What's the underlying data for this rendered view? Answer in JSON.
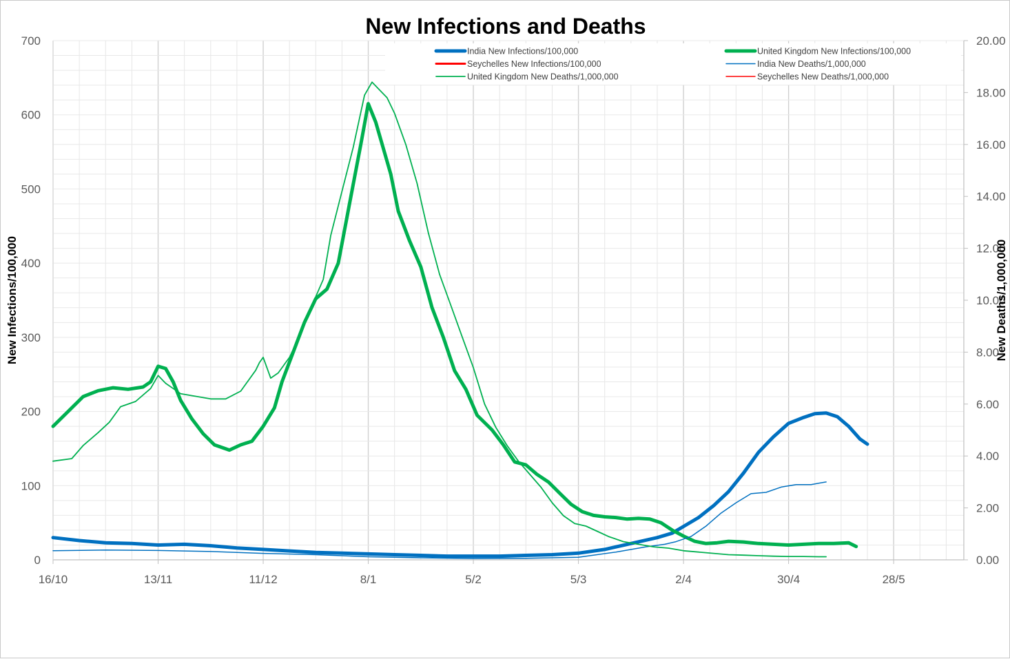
{
  "chart_data": {
    "type": "line",
    "title": "New Infections and Deaths",
    "ylabel": "New Infections/100,000",
    "y2label": "New Deaths/1,000,000",
    "ylim": [
      0,
      700
    ],
    "y2lim": [
      0,
      20
    ],
    "yticks": [
      "0",
      "100",
      "200",
      "300",
      "400",
      "500",
      "600",
      "700"
    ],
    "y2ticks": [
      "0.00",
      "2.00",
      "4.00",
      "6.00",
      "8.00",
      "10.00",
      "12.00",
      "14.00",
      "16.00",
      "18.00",
      "20.00"
    ],
    "xlim": [
      0,
      245
    ],
    "xticks": [
      {
        "day": 0,
        "label": "16/10"
      },
      {
        "day": 28,
        "label": "13/11"
      },
      {
        "day": 56,
        "label": "11/12"
      },
      {
        "day": 84,
        "label": "8/1"
      },
      {
        "day": 112,
        "label": "5/2"
      },
      {
        "day": 140,
        "label": "5/3"
      },
      {
        "day": 168,
        "label": "2/4"
      },
      {
        "day": 196,
        "label": "30/4"
      },
      {
        "day": 224,
        "label": "28/5"
      }
    ],
    "grid": true,
    "legend_position": "top-right",
    "series": [
      {
        "name": "India New Infections/100,000",
        "axis": "left",
        "color": "#0070C0",
        "width": 5,
        "points": [
          [
            0,
            30
          ],
          [
            7,
            26
          ],
          [
            14,
            23
          ],
          [
            21,
            22
          ],
          [
            28,
            20
          ],
          [
            35,
            21
          ],
          [
            42,
            19
          ],
          [
            49,
            16
          ],
          [
            56,
            14
          ],
          [
            63,
            12
          ],
          [
            70,
            10
          ],
          [
            77,
            9
          ],
          [
            84,
            8
          ],
          [
            91,
            7
          ],
          [
            98,
            6
          ],
          [
            105,
            5
          ],
          [
            112,
            5
          ],
          [
            119,
            5
          ],
          [
            126,
            6
          ],
          [
            133,
            7
          ],
          [
            140,
            9
          ],
          [
            147,
            14
          ],
          [
            154,
            22
          ],
          [
            161,
            30
          ],
          [
            165,
            36
          ],
          [
            168,
            45
          ],
          [
            172,
            57
          ],
          [
            176,
            73
          ],
          [
            180,
            92
          ],
          [
            184,
            117
          ],
          [
            188,
            145
          ],
          [
            192,
            166
          ],
          [
            196,
            184
          ],
          [
            200,
            192
          ],
          [
            203,
            197
          ],
          [
            206,
            198
          ],
          [
            209,
            193
          ],
          [
            212,
            180
          ],
          [
            215,
            163
          ],
          [
            217,
            156
          ]
        ]
      },
      {
        "name": "United Kingdom New Infections/100,000",
        "axis": "left",
        "color": "#00B050",
        "width": 5,
        "points": [
          [
            0,
            180
          ],
          [
            4,
            200
          ],
          [
            8,
            220
          ],
          [
            12,
            228
          ],
          [
            16,
            232
          ],
          [
            20,
            230
          ],
          [
            24,
            233
          ],
          [
            26,
            240
          ],
          [
            28,
            261
          ],
          [
            30,
            258
          ],
          [
            32,
            240
          ],
          [
            34,
            215
          ],
          [
            37,
            190
          ],
          [
            40,
            170
          ],
          [
            43,
            155
          ],
          [
            47,
            148
          ],
          [
            50,
            155
          ],
          [
            53,
            160
          ],
          [
            56,
            180
          ],
          [
            59,
            205
          ],
          [
            61,
            240
          ],
          [
            64,
            280
          ],
          [
            67,
            320
          ],
          [
            70,
            352
          ],
          [
            73,
            365
          ],
          [
            76,
            400
          ],
          [
            79,
            480
          ],
          [
            82,
            560
          ],
          [
            84,
            615
          ],
          [
            86,
            590
          ],
          [
            88,
            555
          ],
          [
            90,
            520
          ],
          [
            92,
            470
          ],
          [
            95,
            430
          ],
          [
            98,
            395
          ],
          [
            101,
            340
          ],
          [
            104,
            300
          ],
          [
            107,
            255
          ],
          [
            110,
            230
          ],
          [
            113,
            195
          ],
          [
            117,
            175
          ],
          [
            120,
            155
          ],
          [
            123,
            132
          ],
          [
            126,
            128
          ],
          [
            129,
            115
          ],
          [
            132,
            105
          ],
          [
            135,
            90
          ],
          [
            138,
            75
          ],
          [
            141,
            65
          ],
          [
            144,
            60
          ],
          [
            147,
            58
          ],
          [
            150,
            57
          ],
          [
            153,
            55
          ],
          [
            156,
            56
          ],
          [
            159,
            55
          ],
          [
            162,
            50
          ],
          [
            165,
            40
          ],
          [
            168,
            32
          ],
          [
            171,
            25
          ],
          [
            174,
            22
          ],
          [
            177,
            23
          ],
          [
            180,
            25
          ],
          [
            184,
            24
          ],
          [
            188,
            22
          ],
          [
            192,
            21
          ],
          [
            196,
            20
          ],
          [
            200,
            21
          ],
          [
            204,
            22
          ],
          [
            208,
            22
          ],
          [
            212,
            23
          ],
          [
            214,
            18
          ]
        ]
      },
      {
        "name": "India New Deaths/1,000,000",
        "axis": "right",
        "color": "#0070C0",
        "width": 1.5,
        "points": [
          [
            0,
            0.35
          ],
          [
            14,
            0.38
          ],
          [
            28,
            0.36
          ],
          [
            42,
            0.32
          ],
          [
            56,
            0.25
          ],
          [
            70,
            0.2
          ],
          [
            84,
            0.12
          ],
          [
            98,
            0.08
          ],
          [
            112,
            0.05
          ],
          [
            126,
            0.06
          ],
          [
            140,
            0.1
          ],
          [
            150,
            0.3
          ],
          [
            158,
            0.5
          ],
          [
            163,
            0.6
          ],
          [
            166,
            0.7
          ],
          [
            170,
            0.9
          ],
          [
            174,
            1.3
          ],
          [
            178,
            1.8
          ],
          [
            182,
            2.2
          ],
          [
            186,
            2.55
          ],
          [
            190,
            2.6
          ],
          [
            194,
            2.8
          ],
          [
            198,
            2.9
          ],
          [
            202,
            2.9
          ],
          [
            204,
            2.95
          ],
          [
            206,
            3.0
          ]
        ]
      },
      {
        "name": "United Kingdom New Deaths/1,000,000",
        "axis": "right",
        "color": "#00B050",
        "width": 1.8,
        "points": [
          [
            0,
            3.8
          ],
          [
            5,
            3.9
          ],
          [
            8,
            4.4
          ],
          [
            12,
            4.9
          ],
          [
            15,
            5.3
          ],
          [
            18,
            5.9
          ],
          [
            22,
            6.1
          ],
          [
            26,
            6.6
          ],
          [
            28,
            7.1
          ],
          [
            30,
            6.8
          ],
          [
            34,
            6.4
          ],
          [
            38,
            6.3
          ],
          [
            42,
            6.2
          ],
          [
            46,
            6.2
          ],
          [
            50,
            6.5
          ],
          [
            54,
            7.3
          ],
          [
            55,
            7.6
          ],
          [
            56,
            7.8
          ],
          [
            58,
            7.0
          ],
          [
            60,
            7.2
          ],
          [
            63,
            7.8
          ],
          [
            66,
            8.7
          ],
          [
            69,
            9.8
          ],
          [
            72,
            10.8
          ],
          [
            74,
            12.5
          ],
          [
            77,
            14.2
          ],
          [
            80,
            15.9
          ],
          [
            83,
            17.9
          ],
          [
            85,
            18.4
          ],
          [
            87,
            18.1
          ],
          [
            89,
            17.8
          ],
          [
            91,
            17.2
          ],
          [
            94,
            16.0
          ],
          [
            97,
            14.5
          ],
          [
            100,
            12.6
          ],
          [
            103,
            11.0
          ],
          [
            106,
            9.8
          ],
          [
            109,
            8.6
          ],
          [
            112,
            7.4
          ],
          [
            115,
            6.0
          ],
          [
            118,
            5.1
          ],
          [
            121,
            4.4
          ],
          [
            124,
            3.8
          ],
          [
            127,
            3.3
          ],
          [
            130,
            2.8
          ],
          [
            133,
            2.2
          ],
          [
            136,
            1.7
          ],
          [
            139,
            1.4
          ],
          [
            142,
            1.3
          ],
          [
            145,
            1.1
          ],
          [
            148,
            0.9
          ],
          [
            152,
            0.7
          ],
          [
            156,
            0.6
          ],
          [
            160,
            0.5
          ],
          [
            164,
            0.45
          ],
          [
            168,
            0.35
          ],
          [
            172,
            0.3
          ],
          [
            176,
            0.25
          ],
          [
            180,
            0.2
          ],
          [
            184,
            0.18
          ],
          [
            188,
            0.16
          ],
          [
            192,
            0.14
          ],
          [
            196,
            0.13
          ],
          [
            200,
            0.13
          ],
          [
            204,
            0.12
          ],
          [
            206,
            0.12
          ]
        ]
      },
      {
        "name": "Seychelles New Infections/100,000",
        "axis": "left",
        "color": "#FF0000",
        "width": 3,
        "points": []
      },
      {
        "name": "Seychelles New Deaths/1,000,000",
        "axis": "right",
        "color": "#FF0000",
        "width": 1.5,
        "points": []
      }
    ]
  },
  "legend": [
    {
      "label": "India New Infections/100,000",
      "color": "#0070C0",
      "width": 5
    },
    {
      "label": "United Kingdom New Infections/100,000",
      "color": "#00B050",
      "width": 5
    },
    {
      "label": "Seychelles New Infections/100,000",
      "color": "#FF0000",
      "width": 3
    },
    {
      "label": "India New Deaths/1,000,000",
      "color": "#0070C0",
      "width": 1.5
    },
    {
      "label": "United Kingdom New Deaths/1,000,000",
      "color": "#00B050",
      "width": 1.8
    },
    {
      "label": "Seychelles New Deaths/1,000,000",
      "color": "#FF0000",
      "width": 1.5
    }
  ]
}
